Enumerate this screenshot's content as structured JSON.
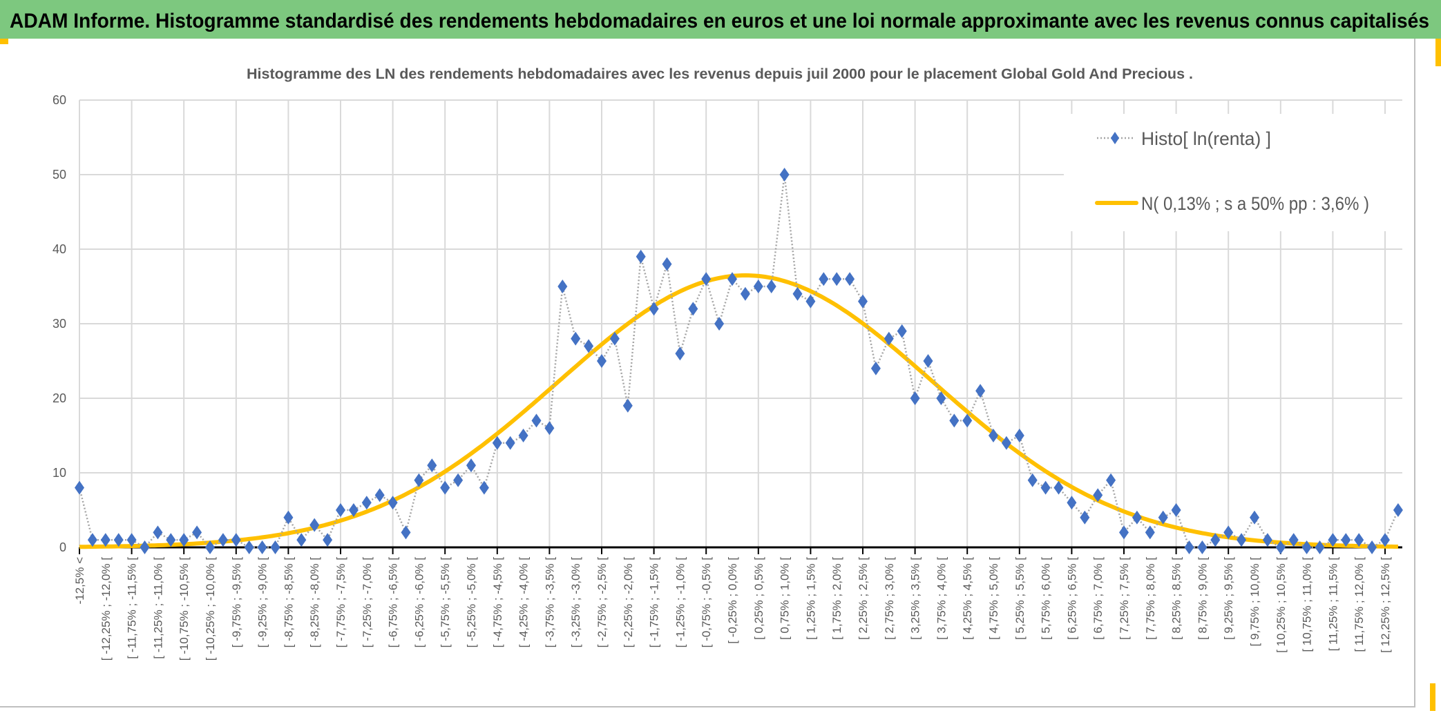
{
  "header": {
    "title": "ADAM Informe. Histogramme standardisé des rendements hebdomadaires en euros et une loi normale approximante avec les revenus connus capitalisés"
  },
  "colors": {
    "header_bg": "#7DC87F",
    "histo_marker": "#4472C4",
    "histo_line": "#A5A5A5",
    "normal_curve": "#FFC000",
    "handle": "#FFC000"
  },
  "chart_data": {
    "type": "line",
    "title": "Histogramme des LN des rendements hebdomadaires avec les revenus depuis juil 2000 pour le placement Global Gold And Precious .",
    "xlabel": "",
    "ylabel": "",
    "ylim": [
      0,
      60
    ],
    "yticks": [
      "0",
      "10",
      "20",
      "30",
      "40",
      "50",
      "60"
    ],
    "grid": true,
    "legend_position": "top-right",
    "x_labels_shown": [
      "-12,5% <",
      "[ -12,25% ; -12,0% [",
      "[ -11,75% ; -11,5% [",
      "[ -11,25% ; -11,0% [",
      "[ -10,75% ; -10,5% [",
      "[ -10,25% ; -10,0% [",
      "[ -9,75% ; -9,5% [",
      "[ -9,25% ; -9,0% [",
      "[ -8,75% ; -8,5% [",
      "[ -8,25% ; -8,0% [",
      "[ -7,75% ; -7,5% [",
      "[ -7,25% ; -7,0% [",
      "[ -6,75% ; -6,5% [",
      "[ -6,25% ; -6,0% [",
      "[ -5,75% ; -5,5% [",
      "[ -5,25% ; -5,0% [",
      "[ -4,75% ; -4,5% [",
      "[ -4,25% ; -4,0% [",
      "[ -3,75% ; -3,5% [",
      "[ -3,25% ; -3,0% [",
      "[ -2,75% ; -2,5% [",
      "[ -2,25% ; -2,0% [",
      "[ -1,75% ; -1,5% [",
      "[ -1,25% ; -1,0% [",
      "[ -0,75% ; -0,5% [",
      "[ -0,25% ; 0,0% [",
      "[ 0,25% ; 0,5% [",
      "[ 0,75% ; 1,0% [",
      "[ 1,25% ; 1,5% [",
      "[ 1,75% ; 2,0% [",
      "[ 2,25% ; 2,5% [",
      "[ 2,75% ; 3,0% [",
      "[ 3,25% ; 3,5% [",
      "[ 3,75% ; 4,0% [",
      "[ 4,25% ; 4,5% [",
      "[ 4,75% ; 5,0% [",
      "[ 5,25% ; 5,5% [",
      "[ 5,75% ; 6,0% [",
      "[ 6,25% ; 6,5% [",
      "[ 6,75% ; 7,0% [",
      "[ 7,25% ; 7,5% [",
      "[ 7,75% ; 8,0% [",
      "[ 8,25% ; 8,5% [",
      "[ 8,75% ; 9,0% [",
      "[ 9,25% ; 9,5% [",
      "[ 9,75% ; 10,0% [",
      "[ 10,25% ; 10,5% [",
      "[ 10,75% ; 11,0% [",
      "[ 11,25% ; 11,5% [",
      "[ 11,75% ; 12,0% [",
      "[ 12,25% ; 12,5% ["
    ],
    "series": [
      {
        "name": "Histo[ ln(renta) ]",
        "style": "dotted line with diamond markers",
        "values": [
          8,
          1,
          1,
          1,
          1,
          0,
          2,
          1,
          1,
          2,
          0,
          1,
          1,
          0,
          0,
          0,
          4,
          1,
          3,
          1,
          5,
          5,
          6,
          7,
          6,
          2,
          9,
          11,
          8,
          9,
          11,
          8,
          14,
          14,
          15,
          17,
          16,
          35,
          28,
          27,
          25,
          28,
          19,
          39,
          32,
          38,
          26,
          32,
          36,
          30,
          36,
          34,
          35,
          35,
          50,
          34,
          33,
          36,
          36,
          36,
          33,
          24,
          28,
          29,
          20,
          25,
          20,
          17,
          17,
          21,
          15,
          14,
          15,
          9,
          8,
          8,
          6,
          4,
          7,
          9,
          2,
          4,
          2,
          4,
          5,
          0,
          0,
          1,
          2,
          1,
          4,
          1,
          0,
          1,
          0,
          0,
          1,
          1,
          1,
          0,
          1,
          5
        ]
      },
      {
        "name": "N( 0,13% ; s a 50% pp : 3,6% )",
        "style": "smooth thick line",
        "mean_pct": 0.13,
        "sd_pct": 3.6
      }
    ]
  }
}
